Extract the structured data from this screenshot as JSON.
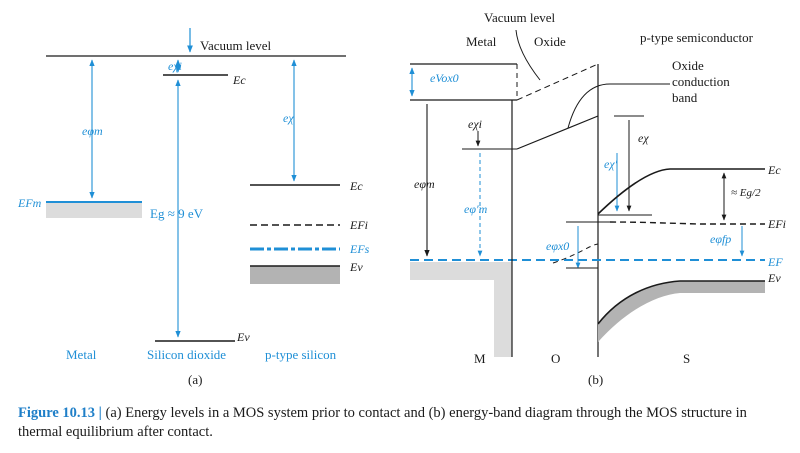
{
  "panel_a": {
    "vacuum_level": "Vacuum level",
    "e_chi_i": "eχi",
    "ec_ox": "Ec",
    "e_phi_m": "eφm",
    "e_chi": "eχ",
    "e_fm": "EFm",
    "eg": "Eg ≈ 9 eV",
    "ev_ox": "Ev",
    "ec_si": "Ec",
    "efi": "EFi",
    "efs": "EFs",
    "ev_si": "Ev",
    "metal": "Metal",
    "silicon_dioxide": "Silicon dioxide",
    "p_type_silicon": "p-type silicon",
    "label": "(a)"
  },
  "panel_b": {
    "vacuum_level": "Vacuum level",
    "metal": "Metal",
    "oxide": "Oxide",
    "p_type_semiconductor": "p-type semiconductor",
    "oxide_conduction_band_1": "Oxide",
    "oxide_conduction_band_2": "conduction",
    "oxide_conduction_band_3": "band",
    "e_v_ox0": "eVox0",
    "e_chi_i": "eχi",
    "e_chi": "eχ",
    "e_chi_prime": "eχ′",
    "e_phi_m": "eφm",
    "e_phi_m_prime": "eφ′m",
    "ec": "Ec",
    "eg_half": "≈ Eg/2",
    "efi": "EFi",
    "e_phi_fp": "eφfp",
    "e_phi_x0": "eφx0",
    "ef": "EF",
    "ev": "Ev",
    "m": "M",
    "o": "O",
    "s": "S",
    "label": "(b)"
  },
  "caption": {
    "head": "Figure 10.13 |",
    "text": " (a) Energy levels in a MOS system prior to contact and (b) energy-band diagram through the MOS structure in thermal equilibrium after contact."
  },
  "colors": {
    "accent": "#1f8fd6",
    "shade": "#dcdcdc",
    "shade_dark": "#b3b3b3",
    "line": "#1a1a1a"
  }
}
